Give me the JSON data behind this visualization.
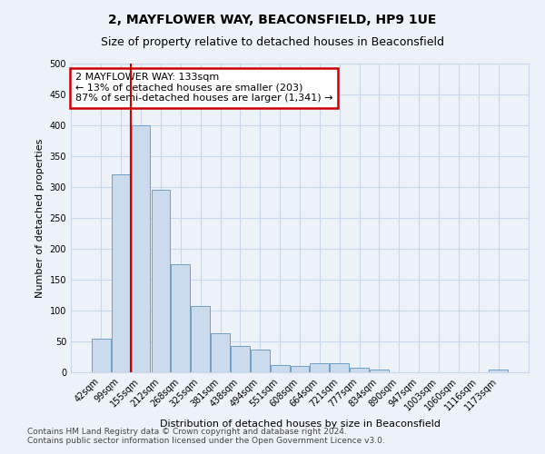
{
  "title1": "2, MAYFLOWER WAY, BEACONSFIELD, HP9 1UE",
  "title2": "Size of property relative to detached houses in Beaconsfield",
  "xlabel": "Distribution of detached houses by size in Beaconsfield",
  "ylabel": "Number of detached properties",
  "categories": [
    "42sqm",
    "99sqm",
    "155sqm",
    "212sqm",
    "268sqm",
    "325sqm",
    "381sqm",
    "438sqm",
    "494sqm",
    "551sqm",
    "608sqm",
    "664sqm",
    "721sqm",
    "777sqm",
    "834sqm",
    "890sqm",
    "947sqm",
    "1003sqm",
    "1060sqm",
    "1116sqm",
    "1173sqm"
  ],
  "values": [
    55,
    320,
    400,
    295,
    175,
    108,
    63,
    42,
    37,
    12,
    10,
    15,
    15,
    8,
    5,
    0,
    0,
    0,
    0,
    0,
    5
  ],
  "bar_color": "#ccdaed",
  "bar_edge_color": "#6e9fc5",
  "annotation_text": "2 MAYFLOWER WAY: 133sqm\n← 13% of detached houses are smaller (203)\n87% of semi-detached houses are larger (1,341) →",
  "annotation_box_color": "#ffffff",
  "annotation_box_edge_color": "#cc0000",
  "vline_color": "#cc0000",
  "ylim": [
    0,
    500
  ],
  "yticks": [
    0,
    50,
    100,
    150,
    200,
    250,
    300,
    350,
    400,
    450,
    500
  ],
  "grid_color": "#c8d8ea",
  "background_color": "#edf2f9",
  "footer1": "Contains HM Land Registry data © Crown copyright and database right 2024.",
  "footer2": "Contains public sector information licensed under the Open Government Licence v3.0.",
  "title1_fontsize": 10,
  "title2_fontsize": 9,
  "xlabel_fontsize": 8,
  "ylabel_fontsize": 8,
  "tick_fontsize": 7,
  "footer_fontsize": 6.5,
  "annotation_fontsize": 8
}
